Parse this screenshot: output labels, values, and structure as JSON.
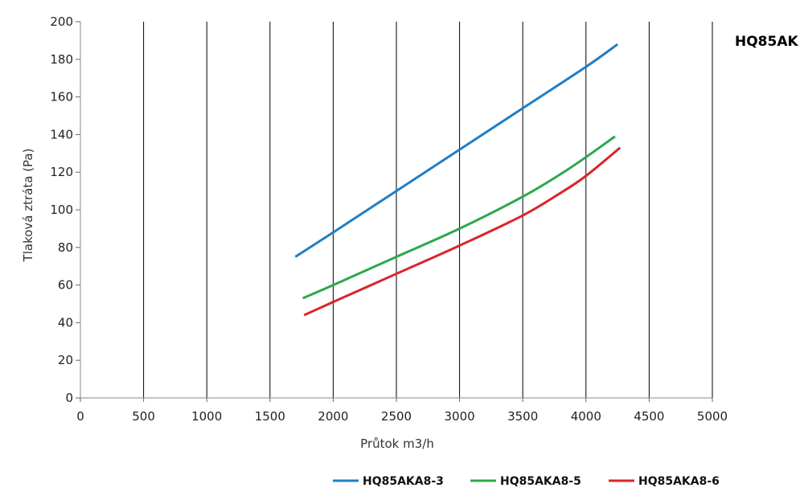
{
  "chart_data": {
    "type": "line",
    "title": "HQ85AK",
    "xlabel": "Průtok m3/h",
    "ylabel": "Tlaková ztráta (Pa)",
    "xlim": [
      0,
      5000
    ],
    "ylim": [
      0,
      200
    ],
    "x_ticks": [
      "0",
      "500",
      "1000",
      "1500",
      "2000",
      "2500",
      "3000",
      "3500",
      "4000",
      "4500",
      "5000"
    ],
    "y_ticks": [
      "0",
      "20",
      "40",
      "60",
      "80",
      "100",
      "120",
      "140",
      "160",
      "180",
      "200"
    ],
    "grid": "vertical",
    "legend_position": "bottom",
    "series": [
      {
        "name": "HQ85AKA8-3",
        "color": "#1f7fc4",
        "x": [
          1700,
          2000,
          2500,
          3000,
          3500,
          4000,
          4250
        ],
        "y": [
          75,
          88,
          110,
          132,
          154,
          176,
          188
        ]
      },
      {
        "name": "HQ85AKA8-5",
        "color": "#2ca84a",
        "x": [
          1760,
          2000,
          2500,
          3000,
          3500,
          3800,
          4000,
          4230
        ],
        "y": [
          53,
          60,
          75,
          90,
          107,
          119,
          128,
          139
        ]
      },
      {
        "name": "HQ85AKA8-6",
        "color": "#d9262b",
        "x": [
          1770,
          2000,
          2500,
          3000,
          3500,
          3800,
          4000,
          4270
        ],
        "y": [
          44,
          51,
          66,
          81,
          97,
          109,
          118,
          133
        ]
      }
    ]
  }
}
